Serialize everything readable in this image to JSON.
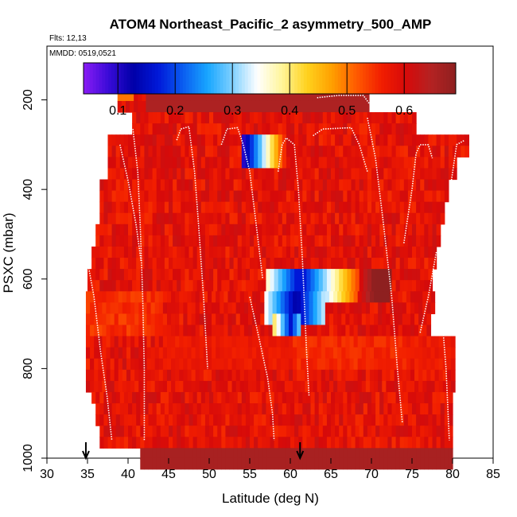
{
  "chart_data": {
    "type": "heatmap",
    "title": "ATOM4 Northeast_Pacific_2 asymmetry_500_AMP",
    "flights_label": "Flts: 12,13",
    "dates_label": "MMDD: 0519,0521",
    "xlabel": "Latitude (deg N)",
    "ylabel": "PSXC (mbar)",
    "xlim": [
      30,
      85
    ],
    "ylim": [
      1000,
      80
    ],
    "x_ticks": [
      "30",
      "35",
      "40",
      "45",
      "50",
      "55",
      "60",
      "65",
      "70",
      "75",
      "80",
      "85"
    ],
    "y_ticks": [
      "200",
      "400",
      "600",
      "800",
      "1000"
    ],
    "colorbar": {
      "range": [
        0.04,
        0.69
      ],
      "ticks": [
        "0.1",
        "0.2",
        "0.3",
        "0.4",
        "0.5",
        "0.6"
      ],
      "colors": [
        "#8a1cf5",
        "#3a0bd8",
        "#0000a8",
        "#0018d8",
        "#0a5cf0",
        "#18a6ff",
        "#7fd0ff",
        "#ffffff",
        "#fff59a",
        "#ffd21e",
        "#ffa000",
        "#ff5a00",
        "#f21e00",
        "#d60a0a",
        "#b42222",
        "#8e2020"
      ]
    },
    "arrows_latitude": [
      34.8,
      61.2
    ],
    "profile_track_description": "aircraft vertical profiles shown as white dotted lines"
  }
}
